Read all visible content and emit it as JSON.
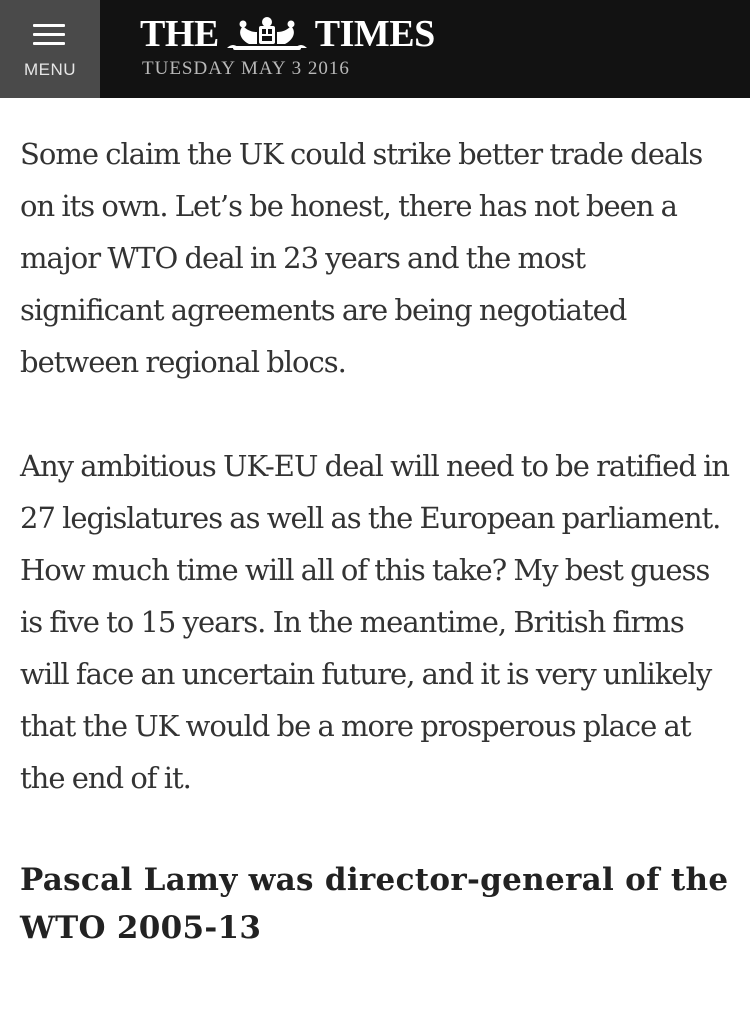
{
  "header": {
    "menu_label": "MENU",
    "title_left": "THE",
    "title_right": "TIMES",
    "date": "TUESDAY MAY 3 2016"
  },
  "article": {
    "paragraphs": [
      "Some claim the UK could strike better trade deals on its own. Let’s be honest, there has not been a major WTO deal in 23 years and the most significant agreements are being negotiated between regional blocs.",
      "Any ambitious UK-EU deal will need to be ratified in 27 legislatures as well as the European parliament. How much time will all of this take? My best guess is five to 15 years. In the meantime, British firms will face an uncertain future, and it is very unlikely that the UK would be a more prosperous place at the end of it."
    ],
    "byline": "Pascal Lamy was director-general of the WTO 2005-13"
  },
  "colors": {
    "header_bg": "#121212",
    "menu_bg": "#4a4a4a",
    "body_text": "#333333"
  },
  "icons": {
    "menu": "hamburger-icon",
    "crest": "royal-crest-logo"
  }
}
